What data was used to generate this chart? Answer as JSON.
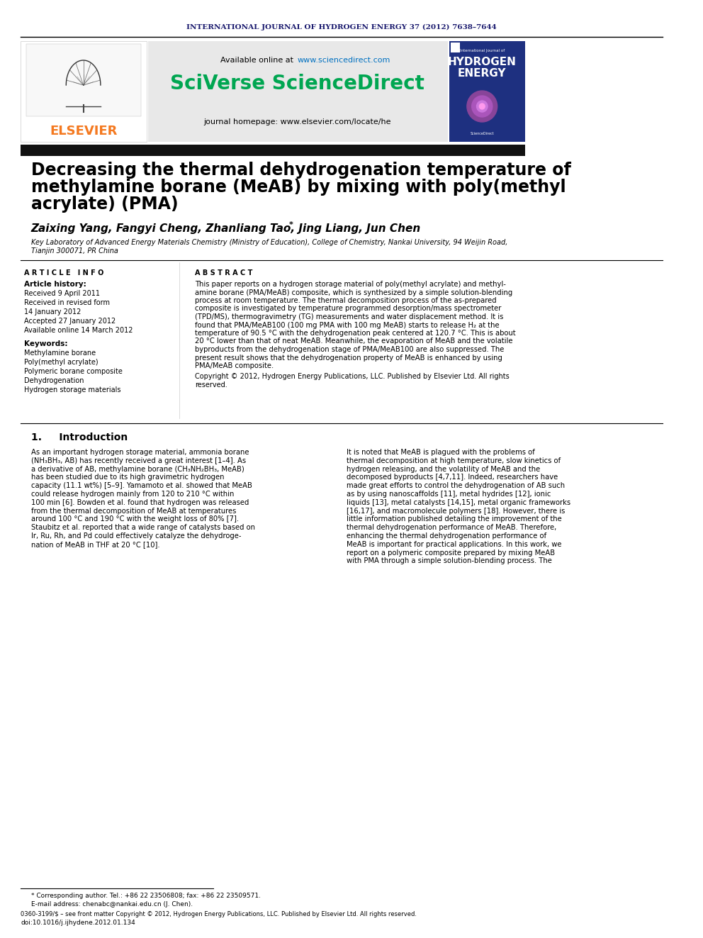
{
  "journal_header": "INTERNATIONAL JOURNAL OF HYDROGEN ENERGY 37 (2012) 7638–7644",
  "available_online": "Available online at www.sciencedirect.com",
  "sciverse_text": "SciVerse ScienceDirect",
  "journal_homepage": "journal homepage: www.elsevier.com/locate/he",
  "elsevier_text": "ELSEVIER",
  "title_line1": "Decreasing the thermal dehydrogenation temperature of",
  "title_line2": "methylamine borane (MeAB) by mixing with poly(methyl",
  "title_line3": "acrylate) (PMA)",
  "authors": "Zaixing Yang, Fangyi Cheng, Zhanliang Tao, Jing Liang, Jun Chen",
  "affiliation": "Key Laboratory of Advanced Energy Materials Chemistry (Ministry of Education), College of Chemistry, Nankai University, 94 Weijin Road,",
  "affiliation2": "Tianjin 300071, PR China",
  "article_info_header": "A R T I C L E   I N F O",
  "article_history_header": "Article history:",
  "received1": "Received 9 April 2011",
  "received2": "Received in revised form",
  "received2b": "14 January 2012",
  "accepted": "Accepted 27 January 2012",
  "available": "Available online 14 March 2012",
  "keywords_header": "Keywords:",
  "kw1": "Methylamine borane",
  "kw2": "Poly(methyl acrylate)",
  "kw3": "Polymeric borane composite",
  "kw4": "Dehydrogenation",
  "kw5": "Hydrogen storage materials",
  "abstract_header": "A B S T R A C T",
  "abstract_lines": [
    "This paper reports on a hydrogen storage material of poly(methyl acrylate) and methyl-",
    "amine borane (PMA/MeAB) composite, which is synthesized by a simple solution-blending",
    "process at room temperature. The thermal decomposition process of the as-prepared",
    "composite is investigated by temperature programmed desorption/mass spectrometer",
    "(TPD/MS), thermogravimetry (TG) measurements and water displacement method. It is",
    "found that PMA/MeAB100 (100 mg PMA with 100 mg MeAB) starts to release H₂ at the",
    "temperature of 90.5 °C with the dehydrogenation peak centered at 120.7 °C. This is about",
    "20 °C lower than that of neat MeAB. Meanwhile, the evaporation of MeAB and the volatile",
    "byproducts from the dehydrogenation stage of PMA/MeAB100 are also suppressed. The",
    "present result shows that the dehydrogenation property of MeAB is enhanced by using",
    "PMA/MeAB composite."
  ],
  "copyright_lines": [
    "Copyright © 2012, Hydrogen Energy Publications, LLC. Published by Elsevier Ltd. All rights",
    "reserved."
  ],
  "section1_header": "1.     Introduction",
  "intro_left_lines": [
    "As an important hydrogen storage material, ammonia borane",
    "(NH₃BH₃, AB) has recently received a great interest [1–4]. As",
    "a derivative of AB, methylamine borane (CH₃NH₂BH₃, MeAB)",
    "has been studied due to its high gravimetric hydrogen",
    "capacity (11.1 wt%) [5–9]. Yamamoto et al. showed that MeAB",
    "could release hydrogen mainly from 120 to 210 °C within",
    "100 min [6]. Bowden et al. found that hydrogen was released",
    "from the thermal decomposition of MeAB at temperatures",
    "around 100 °C and 190 °C with the weight loss of 80% [7].",
    "Staubitz et al. reported that a wide range of catalysts based on",
    "Ir, Ru, Rh, and Pd could effectively catalyze the dehydroge-",
    "nation of MeAB in THF at 20 °C [10]."
  ],
  "intro_right_lines": [
    "It is noted that MeAB is plagued with the problems of",
    "thermal decomposition at high temperature, slow kinetics of",
    "hydrogen releasing, and the volatility of MeAB and the",
    "decomposed byproducts [4,7,11]. Indeed, researchers have",
    "made great efforts to control the dehydrogenation of AB such",
    "as by using nanoscaffolds [11], metal hydrides [12], ionic",
    "liquids [13], metal catalysts [14,15], metal organic frameworks",
    "[16,17], and macromolecule polymers [18]. However, there is",
    "little information published detailing the improvement of the",
    "thermal dehydrogenation performance of MeAB. Therefore,",
    "enhancing the thermal dehydrogenation performance of",
    "MeAB is important for practical applications. In this work, we",
    "report on a polymeric composite prepared by mixing MeAB",
    "with PMA through a simple solution-blending process. The"
  ],
  "footnote1": "* Corresponding author. Tel.: +86 22 23506808; fax: +86 22 23509571.",
  "footnote2": "E-mail address: chenabc@nankai.edu.cn (J. Chen).",
  "footnote3": "0360-3199/$ – see front matter Copyright © 2012, Hydrogen Energy Publications, LLC. Published by Elsevier Ltd. All rights reserved.",
  "footnote4": "doi:10.1016/j.ijhydene.2012.01.134",
  "colors": {
    "dark_navy": "#1a1a6e",
    "elsevier_orange": "#f47920",
    "sciverse_green": "#00a651",
    "link_blue": "#0070c0",
    "black": "#000000",
    "white": "#ffffff",
    "light_gray": "#e8e8e8",
    "dark_bar": "#111111",
    "header_bg": "#f0f0f0"
  }
}
